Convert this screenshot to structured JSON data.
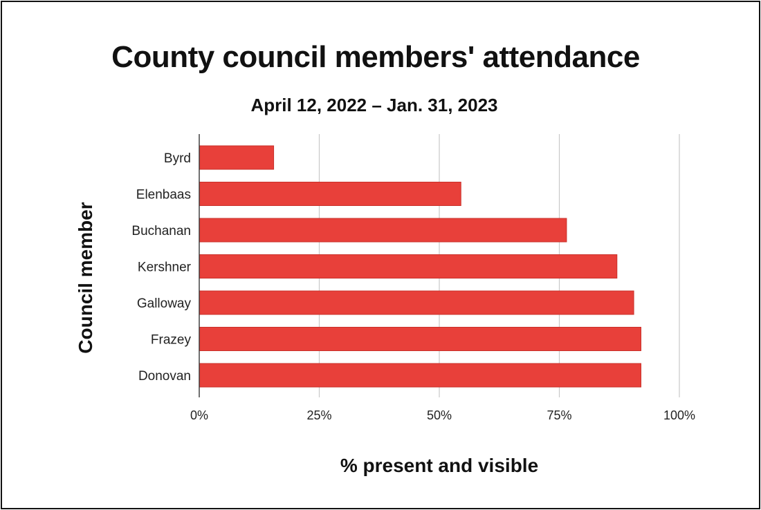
{
  "chart_data": {
    "type": "bar",
    "orientation": "horizontal",
    "title": "County council members' attendance",
    "subtitle": "April 12, 2022 – Jan. 31, 2023",
    "xlabel": "% present and visible",
    "ylabel": "Council member",
    "categories": [
      "Byrd",
      "Elenbaas",
      "Buchanan",
      "Kershner",
      "Galloway",
      "Frazey",
      "Donovan"
    ],
    "values": [
      15.5,
      54.5,
      76.5,
      87,
      90.5,
      92,
      92
    ],
    "xlim": [
      0,
      100
    ],
    "xticks": [
      0,
      25,
      50,
      75,
      100
    ],
    "xtick_labels": [
      "0%",
      "25%",
      "50%",
      "75%",
      "100%"
    ],
    "grid": true,
    "bar_color": "#e8403a"
  }
}
